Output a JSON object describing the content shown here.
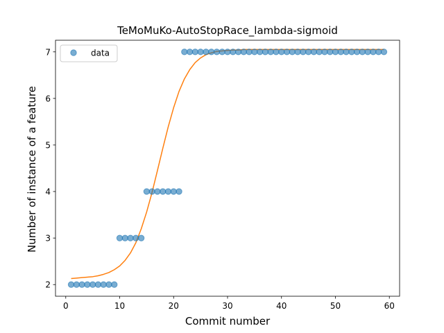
{
  "chart_data": {
    "type": "scatter",
    "title": "TeMoMuKo-AutoStopRace_lambda-sigmoid",
    "xlabel": "Commit number",
    "ylabel": "Number of instance of a feature",
    "xlim": [
      -1.9,
      61.9
    ],
    "ylim": [
      1.75,
      7.25
    ],
    "x_ticks": [
      0,
      10,
      20,
      30,
      40,
      50,
      60
    ],
    "y_ticks": [
      2,
      3,
      4,
      5,
      6,
      7
    ],
    "grid": false,
    "legend": {
      "position": "top-left",
      "entries": [
        "data"
      ]
    },
    "series": [
      {
        "name": "data",
        "kind": "points",
        "color": "#1f77b4",
        "x": [
          1,
          2,
          3,
          4,
          5,
          6,
          7,
          8,
          9,
          10,
          11,
          12,
          13,
          14,
          15,
          16,
          17,
          18,
          19,
          20,
          21,
          22,
          23,
          24,
          25,
          26,
          27,
          28,
          29,
          30,
          31,
          32,
          33,
          34,
          35,
          36,
          37,
          38,
          39,
          40,
          41,
          42,
          43,
          44,
          45,
          46,
          47,
          48,
          49,
          50,
          51,
          52,
          53,
          54,
          55,
          56,
          57,
          58,
          59
        ],
        "y": [
          2,
          2,
          2,
          2,
          2,
          2,
          2,
          2,
          2,
          3,
          3,
          3,
          3,
          3,
          4,
          4,
          4,
          4,
          4,
          4,
          4,
          7,
          7,
          7,
          7,
          7,
          7,
          7,
          7,
          7,
          7,
          7,
          7,
          7,
          7,
          7,
          7,
          7,
          7,
          7,
          7,
          7,
          7,
          7,
          7,
          7,
          7,
          7,
          7,
          7,
          7,
          7,
          7,
          7,
          7,
          7,
          7,
          7,
          7
        ]
      },
      {
        "kind": "fitted-line",
        "color": "#ff7f0e",
        "x": [
          1,
          2,
          3,
          4,
          5,
          6,
          7,
          8,
          9,
          10,
          11,
          12,
          13,
          14,
          15,
          16,
          17,
          18,
          19,
          20,
          21,
          22,
          23,
          24,
          25,
          26,
          27,
          28,
          29,
          30,
          31,
          32,
          33,
          34,
          35,
          36,
          37,
          38,
          39,
          40,
          41,
          42,
          43,
          44,
          45,
          46,
          47,
          48,
          49,
          50,
          51,
          52,
          53,
          54,
          55,
          56,
          57,
          58,
          59
        ],
        "y": [
          2.13,
          2.14,
          2.15,
          2.16,
          2.17,
          2.19,
          2.22,
          2.26,
          2.32,
          2.4,
          2.52,
          2.68,
          2.9,
          3.2,
          3.56,
          3.98,
          4.45,
          4.93,
          5.39,
          5.8,
          6.15,
          6.42,
          6.62,
          6.77,
          6.87,
          6.94,
          6.98,
          7.01,
          7.02,
          7.03,
          7.04,
          7.04,
          7.05,
          7.05,
          7.05,
          7.05,
          7.05,
          7.05,
          7.05,
          7.05,
          7.05,
          7.05,
          7.05,
          7.05,
          7.05,
          7.05,
          7.05,
          7.05,
          7.05,
          7.05,
          7.05,
          7.05,
          7.05,
          7.05,
          7.05,
          7.05,
          7.05,
          7.05,
          7.05
        ]
      }
    ]
  }
}
